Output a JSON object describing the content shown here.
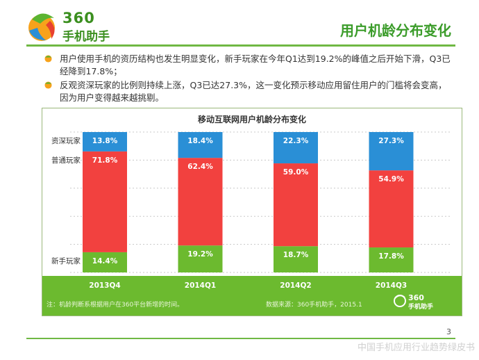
{
  "header": {
    "logo_number": "360",
    "logo_name": "手机助手",
    "slide_title": "用户机龄分布变化"
  },
  "bullets": [
    "用户使用手机的资历结构也发生明显变化，新手玩家在今年Q1达到19.2%的峰值之后开始下滑，Q3已经降到17.8%；",
    "反观资深玩家的比例则持续上涨，Q3已达27.3%，这一变化预示移动应用留住用户的门槛将会变高，因为用户变得越来越挑剔。"
  ],
  "chart_data": {
    "type": "bar",
    "stacked": true,
    "title": "移动互联网用户机龄分布变化",
    "categories": [
      "2013Q4",
      "2014Q1",
      "2014Q2",
      "2014Q3"
    ],
    "series": [
      {
        "name": "新手玩家",
        "color": "#6cba2f",
        "values": [
          14.4,
          19.2,
          18.7,
          17.8
        ],
        "labels": [
          "14.4%",
          "19.2%",
          "18.7%",
          "17.8%"
        ]
      },
      {
        "name": "普通玩家",
        "color": "#f2413f",
        "values": [
          71.8,
          62.4,
          59.0,
          54.9
        ],
        "labels": [
          "71.8%",
          "62.4%",
          "59.0%",
          "54.9%"
        ]
      },
      {
        "name": "资深玩家",
        "color": "#2a8fd6",
        "values": [
          13.8,
          18.4,
          22.3,
          27.3
        ],
        "labels": [
          "13.8%",
          "18.4%",
          "22.3%",
          "27.3%"
        ]
      }
    ],
    "ylim": [
      0,
      100
    ],
    "grid": true,
    "legend": "inline-left"
  },
  "chart_footer": {
    "note": "注：机龄判断系根据用户在360平台新增的时间。",
    "source": "数据来源：360手机助手，2015.1",
    "logo_number": "360",
    "logo_name": "手机助手"
  },
  "page_number": "3",
  "report_name": "中国手机应用行业趋势绿皮书"
}
